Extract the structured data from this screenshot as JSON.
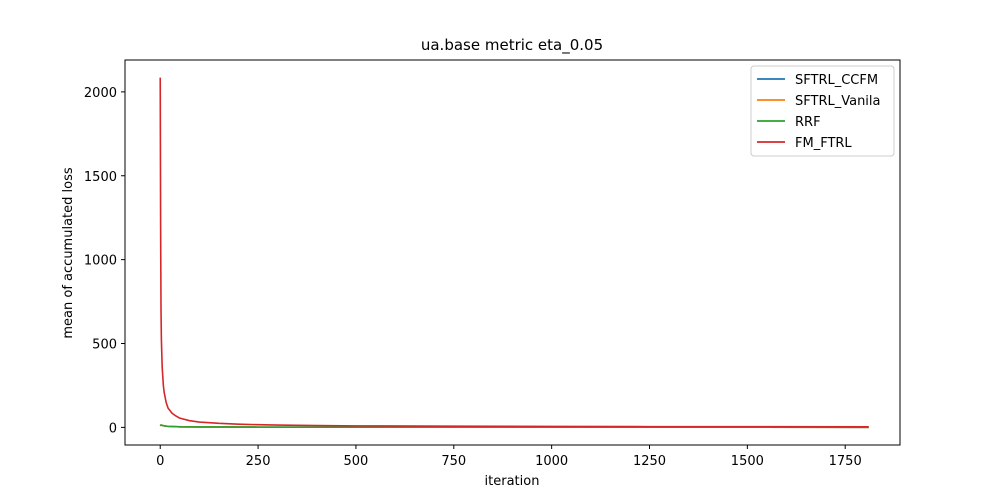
{
  "chart_data": {
    "type": "line",
    "title": "ua.base metric eta_0.05",
    "xlabel": "iteration",
    "ylabel": "mean of accumulated loss",
    "xlim": [
      -90,
      1890
    ],
    "ylim": [
      -105,
      2190
    ],
    "xticks": [
      0,
      250,
      500,
      750,
      1000,
      1250,
      1500,
      1750
    ],
    "yticks": [
      0,
      500,
      1000,
      1500,
      2000
    ],
    "grid": false,
    "legend_position": "top-right",
    "series": [
      {
        "name": "SFTRL_CCFM",
        "color": "#1f77b4",
        "points": [
          [
            0,
            10
          ],
          [
            2,
            14
          ],
          [
            5,
            12
          ],
          [
            10,
            9
          ],
          [
            20,
            6
          ],
          [
            50,
            3.5
          ],
          [
            100,
            2.5
          ],
          [
            250,
            1.6
          ],
          [
            500,
            1.2
          ],
          [
            1000,
            0.9
          ],
          [
            1500,
            0.8
          ],
          [
            1810,
            0.7
          ]
        ]
      },
      {
        "name": "SFTRL_Vanila",
        "color": "#ff7f0e",
        "points": [
          [
            0,
            10
          ],
          [
            2,
            14
          ],
          [
            5,
            12
          ],
          [
            10,
            9
          ],
          [
            20,
            6
          ],
          [
            50,
            3.5
          ],
          [
            100,
            2.5
          ],
          [
            250,
            1.6
          ],
          [
            500,
            1.2
          ],
          [
            1000,
            0.9
          ],
          [
            1500,
            0.8
          ],
          [
            1810,
            0.7
          ]
        ]
      },
      {
        "name": "RRF",
        "color": "#2ca02c",
        "points": [
          [
            0,
            10
          ],
          [
            2,
            14
          ],
          [
            5,
            12
          ],
          [
            10,
            9
          ],
          [
            20,
            6
          ],
          [
            50,
            3.5
          ],
          [
            100,
            2.5
          ],
          [
            250,
            1.6
          ],
          [
            500,
            1.2
          ],
          [
            1000,
            0.9
          ],
          [
            1500,
            0.8
          ],
          [
            1810,
            0.7
          ]
        ]
      },
      {
        "name": "FM_FTRL",
        "color": "#d62728",
        "points": [
          [
            0,
            2085
          ],
          [
            1,
            1200
          ],
          [
            2,
            700
          ],
          [
            3,
            520
          ],
          [
            5,
            360
          ],
          [
            8,
            250
          ],
          [
            10,
            210
          ],
          [
            15,
            150
          ],
          [
            20,
            115
          ],
          [
            30,
            85
          ],
          [
            40,
            68
          ],
          [
            50,
            55
          ],
          [
            75,
            40
          ],
          [
            100,
            32
          ],
          [
            150,
            24
          ],
          [
            200,
            19
          ],
          [
            250,
            16
          ],
          [
            300,
            14
          ],
          [
            400,
            11
          ],
          [
            500,
            9
          ],
          [
            750,
            7
          ],
          [
            1000,
            5.5
          ],
          [
            1250,
            4.5
          ],
          [
            1500,
            4
          ],
          [
            1810,
            3.5
          ]
        ]
      }
    ]
  }
}
